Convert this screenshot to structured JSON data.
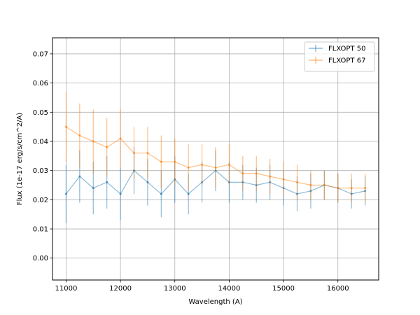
{
  "chart_data": {
    "type": "line",
    "title": "",
    "xlabel": "Wavelength (A)",
    "ylabel": "Flux (1e-17 erg/s/cm^2/A)",
    "xlim": [
      10750,
      16750
    ],
    "ylim": [
      -0.0075,
      0.0755
    ],
    "x_ticks": [
      11000,
      12000,
      13000,
      14000,
      15000,
      16000
    ],
    "y_ticks": [
      0.0,
      0.01,
      0.02,
      0.03,
      0.04,
      0.05,
      0.06,
      0.07
    ],
    "y_tick_labels": [
      "0.00",
      "0.01",
      "0.02",
      "0.03",
      "0.04",
      "0.05",
      "0.06",
      "0.07"
    ],
    "grid": true,
    "legend_position": "upper right",
    "series": [
      {
        "name": "FLXOPT 50",
        "color": "#1f77b4",
        "x": [
          11000,
          11250,
          11500,
          11750,
          12000,
          12250,
          12500,
          12750,
          13000,
          13250,
          13500,
          13750,
          14000,
          14250,
          14500,
          14750,
          15000,
          15250,
          15500,
          15750,
          16000,
          16250,
          16500
        ],
        "y": [
          0.022,
          0.028,
          0.024,
          0.026,
          0.022,
          0.03,
          0.026,
          0.022,
          0.027,
          0.022,
          0.026,
          0.03,
          0.026,
          0.026,
          0.025,
          0.026,
          0.024,
          0.022,
          0.023,
          0.025,
          0.024,
          0.022,
          0.023
        ],
        "err": [
          0.01,
          0.009,
          0.009,
          0.009,
          0.009,
          0.008,
          0.008,
          0.008,
          0.008,
          0.007,
          0.007,
          0.007,
          0.007,
          0.006,
          0.006,
          0.006,
          0.006,
          0.006,
          0.006,
          0.005,
          0.005,
          0.005,
          0.005
        ]
      },
      {
        "name": "FLXOPT 67",
        "color": "#ff7f0e",
        "x": [
          11000,
          11250,
          11500,
          11750,
          12000,
          12250,
          12500,
          12750,
          13000,
          13250,
          13500,
          13750,
          14000,
          14250,
          14500,
          14750,
          15000,
          15250,
          15500,
          15750,
          16000,
          16250,
          16500
        ],
        "y": [
          0.045,
          0.042,
          0.04,
          0.038,
          0.041,
          0.036,
          0.036,
          0.033,
          0.033,
          0.031,
          0.032,
          0.031,
          0.032,
          0.029,
          0.029,
          0.028,
          0.027,
          0.026,
          0.025,
          0.025,
          0.024,
          0.024,
          0.024
        ],
        "err": [
          0.012,
          0.011,
          0.011,
          0.01,
          0.01,
          0.009,
          0.009,
          0.009,
          0.008,
          0.008,
          0.007,
          0.007,
          0.007,
          0.006,
          0.006,
          0.006,
          0.006,
          0.006,
          0.005,
          0.005,
          0.005,
          0.005,
          0.005
        ]
      }
    ]
  }
}
